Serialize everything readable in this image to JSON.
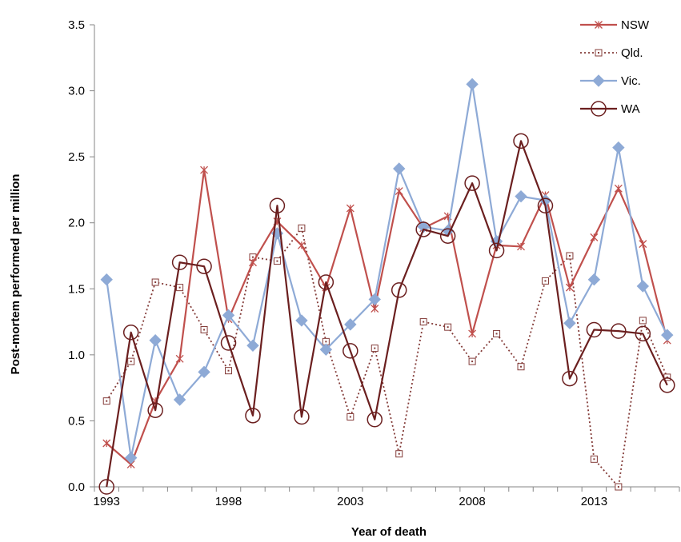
{
  "chart_data": {
    "type": "line",
    "xlabel": "Year of death",
    "ylabel": "Post-mortem performed per million",
    "x": [
      1993,
      1994,
      1995,
      1996,
      1997,
      1998,
      1999,
      2000,
      2001,
      2002,
      2003,
      2004,
      2005,
      2006,
      2007,
      2008,
      2009,
      2010,
      2011,
      2012,
      2013,
      2014,
      2015,
      2016
    ],
    "xticks": [
      1993,
      1998,
      2003,
      2008,
      2013
    ],
    "xtick_labels": [
      "1993",
      "1998",
      "2003",
      "2008",
      "2013"
    ],
    "ylim": [
      0,
      3.5
    ],
    "yticks": [
      0,
      0.5,
      1.0,
      1.5,
      2.0,
      2.5,
      3.0,
      3.5
    ],
    "ytick_labels": [
      "0.0",
      "0.5",
      "1.0",
      "1.5",
      "2.0",
      "2.5",
      "3.0",
      "3.5"
    ],
    "legend_position": "top-right",
    "series": [
      {
        "name": "NSW",
        "color": "#c0504d",
        "marker": "star",
        "dash": "solid",
        "values": [
          0.33,
          0.17,
          0.65,
          0.97,
          2.4,
          1.27,
          1.7,
          2.01,
          1.83,
          1.51,
          2.11,
          1.35,
          2.24,
          1.96,
          2.05,
          1.16,
          1.83,
          1.82,
          2.21,
          1.51,
          1.89,
          2.26,
          1.84,
          1.11
        ]
      },
      {
        "name": "Qld.",
        "color": "#843c39",
        "marker": "square",
        "dash": "dotted",
        "values": [
          0.65,
          0.95,
          1.55,
          1.51,
          1.19,
          0.88,
          1.74,
          1.71,
          1.96,
          1.1,
          0.53,
          1.05,
          0.25,
          1.25,
          1.21,
          0.95,
          1.16,
          0.91,
          1.56,
          1.75,
          0.21,
          0.0,
          1.26,
          0.83
        ]
      },
      {
        "name": "Vic.",
        "color": "#8eaad6",
        "marker": "diamond",
        "dash": "solid",
        "values": [
          1.57,
          0.22,
          1.11,
          0.66,
          0.87,
          1.3,
          1.07,
          1.92,
          1.26,
          1.04,
          1.23,
          1.42,
          2.41,
          1.97,
          1.94,
          3.05,
          1.86,
          2.2,
          2.17,
          1.24,
          1.57,
          2.57,
          1.52,
          1.15
        ]
      },
      {
        "name": "WA",
        "color": "#6b1f1f",
        "marker": "circle",
        "dash": "solid",
        "values": [
          0.0,
          1.17,
          0.58,
          1.7,
          1.67,
          1.09,
          0.54,
          2.13,
          0.53,
          1.55,
          1.03,
          0.51,
          1.49,
          1.95,
          1.9,
          2.3,
          1.79,
          2.62,
          2.13,
          0.82,
          1.19,
          1.18,
          1.16,
          0.77
        ]
      }
    ]
  }
}
